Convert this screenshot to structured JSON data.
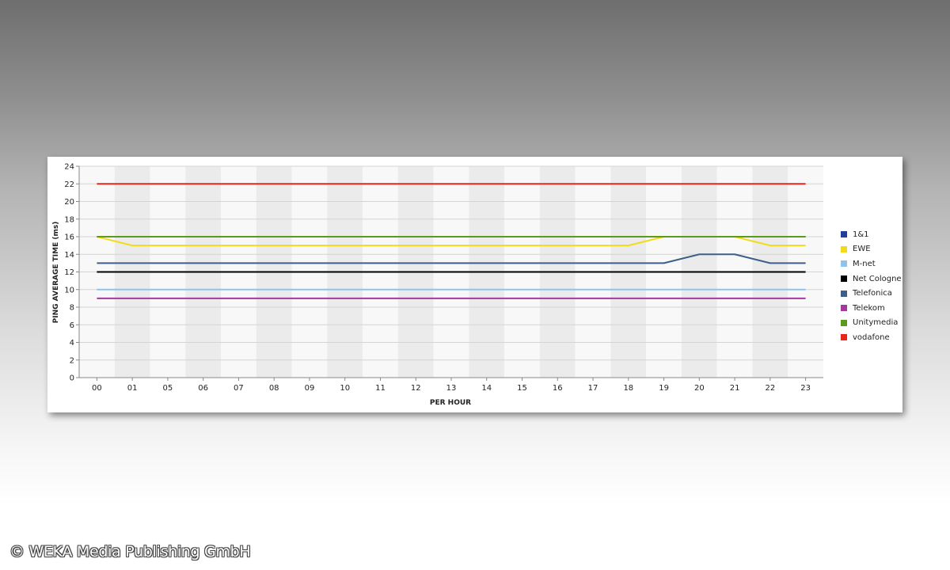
{
  "chart_data": {
    "type": "line",
    "title": "",
    "xlabel": "PER HOUR",
    "ylabel": "PING AVERAGE TIME (ms)",
    "categories": [
      "00",
      "01",
      "05",
      "06",
      "07",
      "08",
      "09",
      "10",
      "11",
      "12",
      "13",
      "14",
      "15",
      "16",
      "17",
      "18",
      "19",
      "20",
      "21",
      "22",
      "23"
    ],
    "ylim": [
      0,
      24
    ],
    "yticks": [
      0,
      2,
      4,
      6,
      8,
      10,
      12,
      14,
      16,
      18,
      20,
      22,
      24
    ],
    "grid": true,
    "legend_position": "right",
    "series": [
      {
        "name": "1&1",
        "color": "#1f3f99",
        "values": [
          16,
          16,
          16,
          16,
          16,
          16,
          16,
          16,
          16,
          16,
          16,
          16,
          16,
          16,
          16,
          16,
          16,
          16,
          16,
          16,
          16
        ]
      },
      {
        "name": "EWE",
        "color": "#f2dc1a",
        "values": [
          16,
          15,
          15,
          15,
          15,
          15,
          15,
          15,
          15,
          15,
          15,
          15,
          15,
          15,
          15,
          15,
          16,
          16,
          16,
          15,
          15
        ]
      },
      {
        "name": "M-net",
        "color": "#8ec3ee",
        "values": [
          10,
          10,
          10,
          10,
          10,
          10,
          10,
          10,
          10,
          10,
          10,
          10,
          10,
          10,
          10,
          10,
          10,
          10,
          10,
          10,
          10
        ]
      },
      {
        "name": "Net Cologne",
        "color": "#000000",
        "values": [
          12,
          12,
          12,
          12,
          12,
          12,
          12,
          12,
          12,
          12,
          12,
          12,
          12,
          12,
          12,
          12,
          12,
          12,
          12,
          12,
          12
        ]
      },
      {
        "name": "Telefonica",
        "color": "#3d5f8a",
        "values": [
          13,
          13,
          13,
          13,
          13,
          13,
          13,
          13,
          13,
          13,
          13,
          13,
          13,
          13,
          13,
          13,
          13,
          14,
          14,
          13,
          13
        ]
      },
      {
        "name": "Telekom",
        "color": "#a03aa0",
        "values": [
          9,
          9,
          9,
          9,
          9,
          9,
          9,
          9,
          9,
          9,
          9,
          9,
          9,
          9,
          9,
          9,
          9,
          9,
          9,
          9,
          9
        ]
      },
      {
        "name": "Unitymedia",
        "color": "#5a9a1e",
        "values": [
          16,
          16,
          16,
          16,
          16,
          16,
          16,
          16,
          16,
          16,
          16,
          16,
          16,
          16,
          16,
          16,
          16,
          16,
          16,
          16,
          16
        ]
      },
      {
        "name": "vodafone",
        "color": "#e8261c",
        "values": [
          22,
          22,
          22,
          22,
          22,
          22,
          22,
          22,
          22,
          22,
          22,
          22,
          22,
          22,
          22,
          22,
          22,
          22,
          22,
          22,
          22
        ]
      }
    ]
  },
  "footer": {
    "copyright": "© WEKA Media Publishing GmbH"
  }
}
